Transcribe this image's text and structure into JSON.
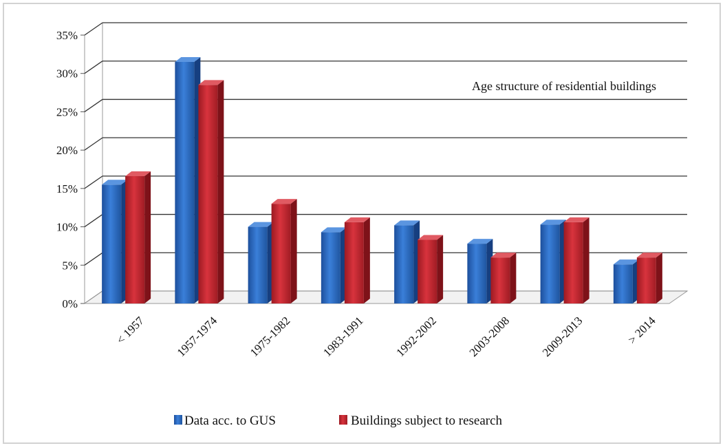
{
  "chart_data": {
    "type": "bar",
    "style": "3d-clustered-column",
    "title": "Age structure of residential buildings",
    "categories": [
      "< 1957",
      "1957-1974",
      "1975-1982",
      "1983-1991",
      "1992-2002",
      "2003-2008",
      "2009-2013",
      "> 2014"
    ],
    "series": [
      {
        "name": "Data acc. to GUS",
        "color": "#2f6fc8",
        "values": [
          15.5,
          31.5,
          10.0,
          9.3,
          10.2,
          7.8,
          10.3,
          5.1
        ]
      },
      {
        "name": "Buildings subject to research",
        "color": "#c8242e",
        "values": [
          16.6,
          28.5,
          13.0,
          10.6,
          8.3,
          6.0,
          10.6,
          6.0
        ]
      }
    ],
    "y_ticks": [
      "0%",
      "5%",
      "10%",
      "15%",
      "20%",
      "25%",
      "30%",
      "35%"
    ],
    "ylim": [
      0,
      35
    ],
    "ylabel": "",
    "xlabel": "",
    "grid": true,
    "legend_position": "bottom"
  }
}
